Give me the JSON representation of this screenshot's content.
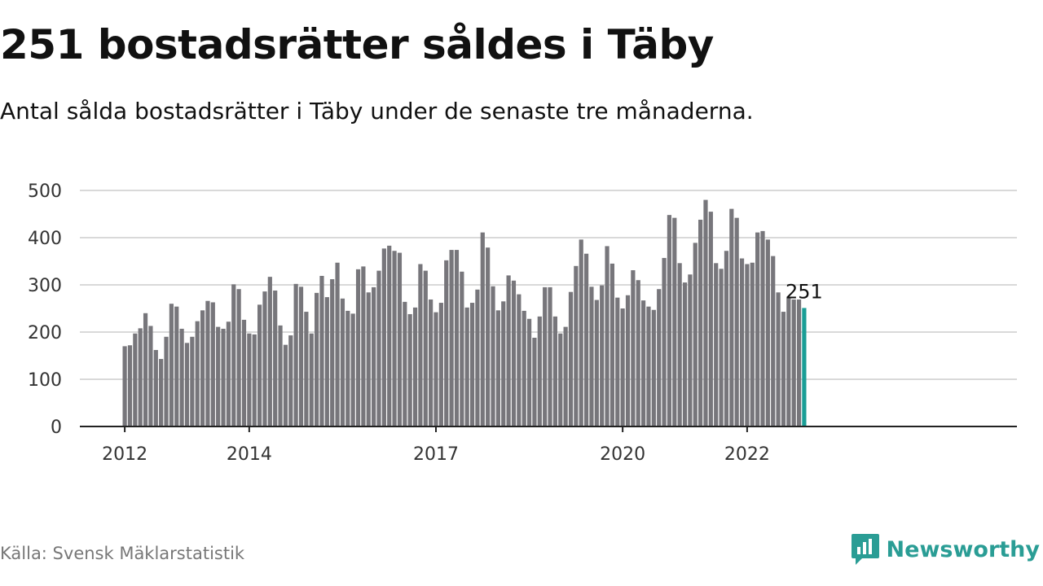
{
  "title": "251 bostadsrätter såldes i Täby",
  "subtitle": "Antal sålda bostadsrätter i Täby under de senaste tre månaderna.",
  "source": "Källa: Svensk Mäklarstatistik",
  "brand": {
    "name": "Newsworthy",
    "icon": "newsworthy-logo-icon",
    "color": "#2a9d95"
  },
  "chart_data": {
    "type": "bar",
    "title": "251 bostadsrätter såldes i Täby",
    "subtitle": "Antal sålda bostadsrätter i Täby under de senaste tre månaderna.",
    "xlabel": "",
    "ylabel": "",
    "x_tick_labels": [
      "2012",
      "2014",
      "2017",
      "2020",
      "2022"
    ],
    "y_ticks": [
      0,
      100,
      200,
      300,
      400,
      500
    ],
    "ylim": [
      0,
      500
    ],
    "grid": true,
    "bar_color": "#77767b",
    "highlight_color": "#1a9e96",
    "highlight_label": "251",
    "series": [
      {
        "values": [
          170,
          172,
          197,
          208,
          240,
          213,
          162,
          143,
          190,
          260,
          254,
          207,
          177,
          190,
          223,
          246,
          266,
          263,
          211,
          207,
          222,
          301,
          291,
          226,
          197,
          195,
          258,
          286,
          317,
          288,
          214,
          173,
          193,
          302,
          296,
          243,
          197,
          283,
          319,
          274,
          312,
          347,
          271,
          245,
          239,
          333,
          339,
          284,
          295,
          330,
          377,
          383,
          372,
          368,
          264,
          238,
          252,
          344,
          330,
          269,
          242,
          262,
          352,
          374,
          374,
          328,
          252,
          262,
          290,
          411,
          379,
          297,
          246,
          265,
          320,
          309,
          280,
          245,
          228,
          188,
          233,
          295,
          295,
          233,
          197,
          211,
          285,
          340,
          396,
          366,
          296,
          268,
          299,
          382,
          345,
          273,
          250,
          278,
          331,
          310,
          267,
          254,
          247,
          291,
          357,
          448,
          442,
          346,
          305,
          322,
          389,
          438,
          480,
          455,
          346,
          334,
          372,
          461,
          442,
          356,
          344,
          347,
          411,
          414,
          396,
          361,
          284,
          243,
          275,
          269,
          269,
          251
        ]
      }
    ]
  }
}
